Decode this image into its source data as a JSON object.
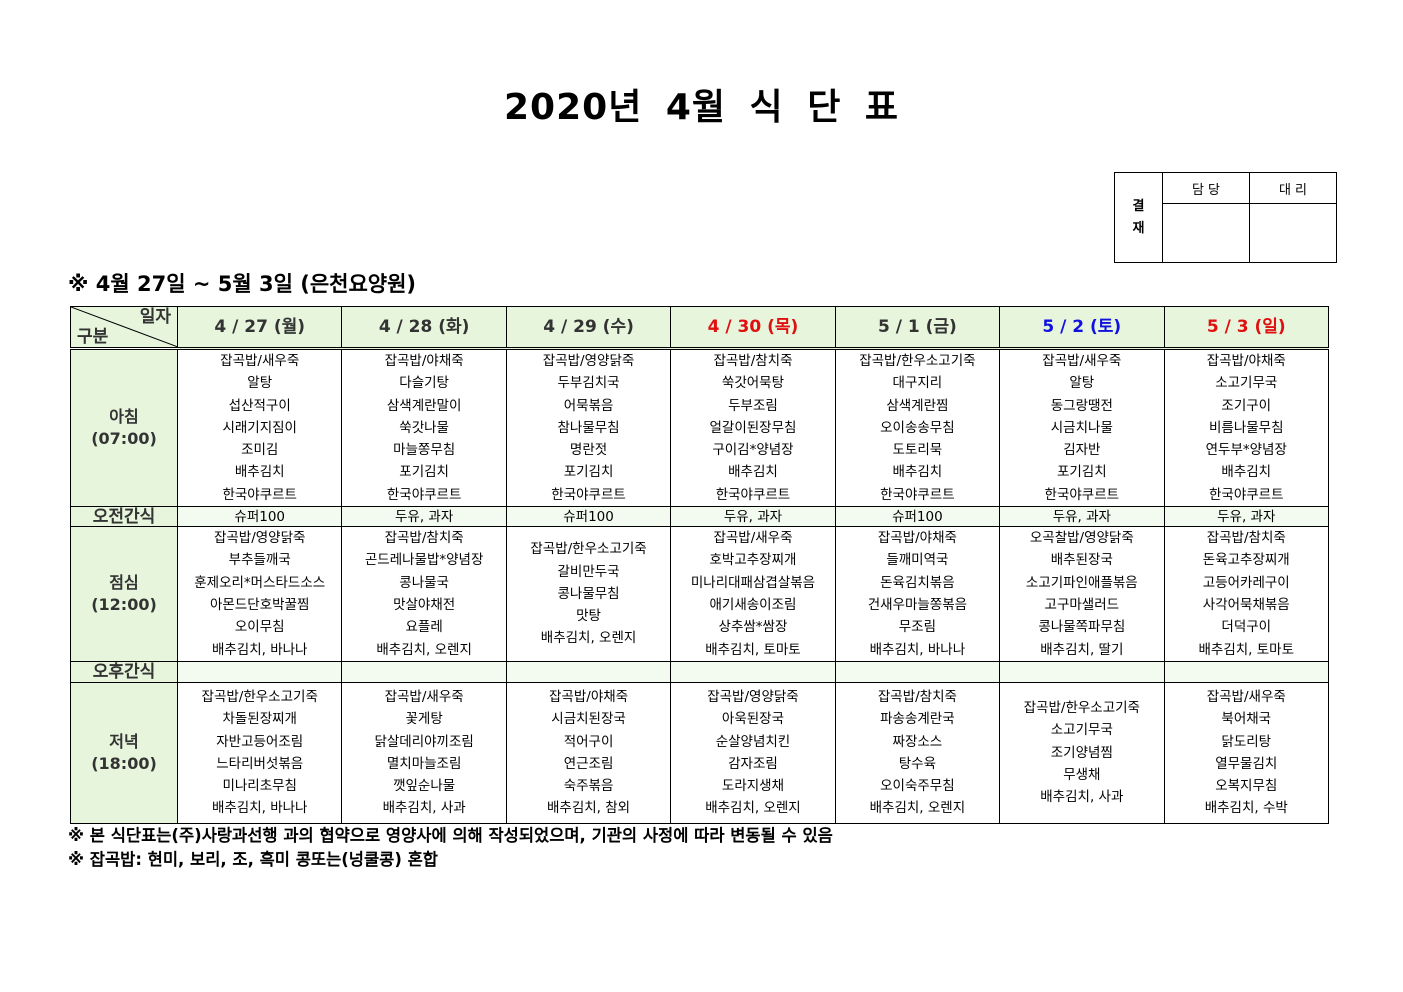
{
  "title": "2020년 4월 식 단 표",
  "approval": {
    "label": "결\n재",
    "label_top": "결",
    "label_bottom": "재",
    "col1": "담 당",
    "col2": "대 리"
  },
  "subtitle": "※ 4월 27일 ~ 5월 3일 (은천요양원)",
  "corner": {
    "top": "일자",
    "bottom": "구분"
  },
  "colors": {
    "header_bg": "#e6f5dc",
    "holiday": "#e01010",
    "saturday": "#1010e0"
  },
  "days": [
    {
      "label": "4 / 27 (월)",
      "color": "#333333"
    },
    {
      "label": "4 / 28 (화)",
      "color": "#333333"
    },
    {
      "label": "4 / 29 (수)",
      "color": "#333333"
    },
    {
      "label": "4 / 30 (목)",
      "color": "#e01010"
    },
    {
      "label": "5 / 1 (금)",
      "color": "#333333"
    },
    {
      "label": "5 / 2 (토)",
      "color": "#1010e0"
    },
    {
      "label": "5 / 3 (일)",
      "color": "#e01010"
    }
  ],
  "meals": [
    {
      "name": "아침",
      "time": "(07:00)",
      "type": "meal",
      "cells": [
        [
          "잡곡밥/새우죽",
          "알탕",
          "섭산적구이",
          "시래기지짐이",
          "조미김",
          "배추김치",
          "한국야쿠르트"
        ],
        [
          "잡곡밥/야채죽",
          "다슬기탕",
          "삼색계란말이",
          "쑥갓나물",
          "마늘쫑무침",
          "포기김치",
          "한국야쿠르트"
        ],
        [
          "잡곡밥/영양닭죽",
          "두부김치국",
          "어묵볶음",
          "참나물무침",
          "명란젓",
          "포기김치",
          "한국야쿠르트"
        ],
        [
          "잡곡밥/참치죽",
          "쑥갓어묵탕",
          "두부조림",
          "얼갈이된장무침",
          "구이김*양념장",
          "배추김치",
          "한국야쿠르트"
        ],
        [
          "잡곡밥/한우소고기죽",
          "대구지리",
          "삼색계란찜",
          "오이송송무침",
          "도토리묵",
          "배추김치",
          "한국야쿠르트"
        ],
        [
          "잡곡밥/새우죽",
          "알탕",
          "동그랑땡전",
          "시금치나물",
          "김자반",
          "포기김치",
          "한국야쿠르트"
        ],
        [
          "잡곡밥/야채죽",
          "소고기무국",
          "조기구이",
          "비름나물무침",
          "연두부*양념장",
          "배추김치",
          "한국야쿠르트"
        ]
      ]
    },
    {
      "name": "오전간식",
      "time": "",
      "type": "snack",
      "cells": [
        [
          "슈퍼100"
        ],
        [
          "두유, 과자"
        ],
        [
          "슈퍼100"
        ],
        [
          "두유, 과자"
        ],
        [
          "슈퍼100"
        ],
        [
          "두유, 과자"
        ],
        [
          "두유, 과자"
        ]
      ]
    },
    {
      "name": "점심",
      "time": "(12:00)",
      "type": "meal",
      "cells": [
        [
          "잡곡밥/영양닭죽",
          "부추들깨국",
          "훈제오리*머스타드소스",
          "아몬드단호박꿀찜",
          "오이무침",
          "배추김치, 바나나"
        ],
        [
          "잡곡밥/참치죽",
          "곤드레나물밥*양념장",
          "콩나물국",
          "맛살야채전",
          "요플레",
          "배추김치, 오렌지"
        ],
        [
          "잡곡밥/한우소고기죽",
          "갈비만두국",
          "콩나물무침",
          "맛탕",
          "배추김치, 오렌지"
        ],
        [
          "잡곡밥/새우죽",
          "호박고추장찌개",
          "미나리대패삼겹살볶음",
          "애기새송이조림",
          "상추쌈*쌈장",
          "배추김치, 토마토"
        ],
        [
          "잡곡밥/야채죽",
          "들깨미역국",
          "돈육김치볶음",
          "건새우마늘쫑볶음",
          "무조림",
          "배추김치, 바나나"
        ],
        [
          "오곡찰밥/영양닭죽",
          "배추된장국",
          "소고기파인애플볶음",
          "고구마샐러드",
          "콩나물쪽파무침",
          "배추김치, 딸기"
        ],
        [
          "잡곡밥/참치죽",
          "돈육고추장찌개",
          "고등어카레구이",
          "사각어묵채볶음",
          "더덕구이",
          "배추김치, 토마토"
        ]
      ]
    },
    {
      "name": "오후간식",
      "time": "",
      "type": "snack",
      "cells": [
        [],
        [],
        [],
        [],
        [],
        [],
        []
      ]
    },
    {
      "name": "저녁",
      "time": "(18:00)",
      "type": "meal",
      "cells": [
        [
          "잡곡밥/한우소고기죽",
          "차돌된장찌개",
          "자반고등어조림",
          "느타리버섯볶음",
          "미나리초무침",
          "배추김치, 바나나"
        ],
        [
          "잡곡밥/새우죽",
          "꽃게탕",
          "닭살데리야끼조림",
          "멸치마늘조림",
          "깻잎순나물",
          "배추김치, 사과"
        ],
        [
          "잡곡밥/야채죽",
          "시금치된장국",
          "적어구이",
          "연근조림",
          "숙주볶음",
          "배추김치, 참외"
        ],
        [
          "잡곡밥/영양닭죽",
          "아욱된장국",
          "순살양념치킨",
          "감자조림",
          "도라지생채",
          "배추김치, 오렌지"
        ],
        [
          "잡곡밥/참치죽",
          "파송송계란국",
          "짜장소스",
          "탕수육",
          "오이숙주무침",
          "배추김치, 오렌지"
        ],
        [
          "잡곡밥/한우소고기죽",
          "소고기무국",
          "조기양념찜",
          "무생채",
          "배추김치, 사과"
        ],
        [
          "잡곡밥/새우죽",
          "북어채국",
          "닭도리탕",
          "열무물김치",
          "오복지무침",
          "배추김치, 수박"
        ]
      ]
    }
  ],
  "footnotes": [
    "※ 본 식단표는(주)사랑과선행 과의 협약으로 영양사에 의해 작성되었으며, 기관의 사정에 따라 변동될 수 있음",
    "※ 잡곡밥: 현미, 보리, 조, 흑미 콩또는(넝쿨콩) 혼합"
  ]
}
